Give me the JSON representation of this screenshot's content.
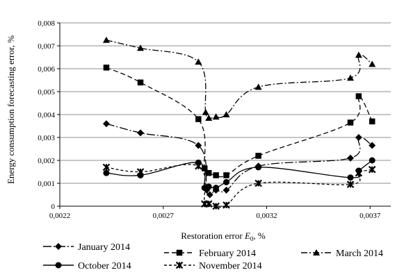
{
  "chart_data": {
    "type": "scatter",
    "xlabel_prefix": "Restoration error ",
    "xlabel_symbol": "E",
    "xlabel_sub": "0",
    "xlabel_suffix": ", %",
    "ylabel": "Energy consumption forecasting error, %",
    "xlim": [
      0.0022,
      0.0038
    ],
    "ylim": [
      0,
      0.008
    ],
    "x_ticks": [
      "0,0022",
      "0,0027",
      "0,0032",
      "0,0037"
    ],
    "x_tick_values": [
      0.0022,
      0.0027,
      0.0032,
      0.0037
    ],
    "y_ticks": [
      "0",
      "0,001",
      "0,002",
      "0,003",
      "0,004",
      "0,005",
      "0,006",
      "0,007",
      "0,008"
    ],
    "y_tick_values": [
      0,
      0.001,
      0.002,
      0.003,
      0.004,
      0.005,
      0.006,
      0.007,
      0.008
    ],
    "grid": "horizontal",
    "legend_position": "bottom",
    "series": [
      {
        "name": "January 2014",
        "marker": "diamond",
        "dash": "long-dash-dot",
        "points": [
          [
            0.002425,
            0.0036
          ],
          [
            0.00259,
            0.0032
          ],
          [
            0.00287,
            0.00265
          ],
          [
            0.00291,
            0.0007
          ],
          [
            0.002925,
            0.0005
          ],
          [
            0.002955,
            0.0007
          ],
          [
            0.003005,
            0.0007
          ],
          [
            0.00316,
            0.00175
          ],
          [
            0.003605,
            0.0021
          ],
          [
            0.003645,
            0.003
          ],
          [
            0.00371,
            0.00265
          ]
        ]
      },
      {
        "name": "February 2014",
        "marker": "square",
        "dash": "dashed",
        "points": [
          [
            0.002425,
            0.00605
          ],
          [
            0.00259,
            0.0054
          ],
          [
            0.00287,
            0.0038
          ],
          [
            0.0029,
            0.00165
          ],
          [
            0.00292,
            0.00145
          ],
          [
            0.002955,
            0.00135
          ],
          [
            0.003005,
            0.00135
          ],
          [
            0.00316,
            0.0022
          ],
          [
            0.003605,
            0.00365
          ],
          [
            0.003645,
            0.0048
          ],
          [
            0.00371,
            0.0037
          ]
        ]
      },
      {
        "name": "March 2014",
        "marker": "triangle",
        "dash": "dash-dot",
        "points": [
          [
            0.002425,
            0.00725
          ],
          [
            0.00259,
            0.0069
          ],
          [
            0.00287,
            0.0063
          ],
          [
            0.002905,
            0.0041
          ],
          [
            0.00292,
            0.00385
          ],
          [
            0.002955,
            0.0039
          ],
          [
            0.003005,
            0.004
          ],
          [
            0.00316,
            0.0052
          ],
          [
            0.003605,
            0.0056
          ],
          [
            0.003645,
            0.0066
          ],
          [
            0.00371,
            0.0062
          ]
        ]
      },
      {
        "name": "October 2014",
        "marker": "circle",
        "dash": "solid",
        "points": [
          [
            0.002425,
            0.00145
          ],
          [
            0.00259,
            0.00135
          ],
          [
            0.00287,
            0.0019
          ],
          [
            0.0029,
            0.0008
          ],
          [
            0.00292,
            0.00085
          ],
          [
            0.002955,
            0.0008
          ],
          [
            0.003005,
            0.00105
          ],
          [
            0.00316,
            0.0017
          ],
          [
            0.003605,
            0.00125
          ],
          [
            0.003645,
            0.00155
          ],
          [
            0.00371,
            0.002
          ]
        ]
      },
      {
        "name": "November 2014",
        "marker": "star",
        "dash": "short-dash",
        "points": [
          [
            0.002425,
            0.0017
          ],
          [
            0.00259,
            0.0015
          ],
          [
            0.00287,
            0.00175
          ],
          [
            0.0029,
            0.0001
          ],
          [
            0.00292,
            0.0001
          ],
          [
            0.002955,
            0.0
          ],
          [
            0.003005,
            5e-05
          ],
          [
            0.00316,
            0.001
          ],
          [
            0.003605,
            0.00095
          ],
          [
            0.003645,
            0.00145
          ],
          [
            0.00371,
            0.0016
          ]
        ]
      }
    ]
  }
}
